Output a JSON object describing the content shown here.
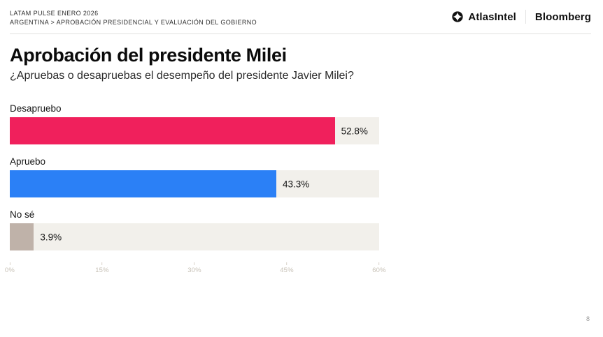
{
  "header": {
    "kicker_line1": "LATAM PULSE ENERO 2026",
    "kicker_line2": "ARGENTINA > APROBACIÓN PRESIDENCIAL Y EVALUACIÓN DEL GOBIERNO",
    "brands": {
      "atlas_label": "AtlasIntel",
      "atlas_icon": "atlas-star-circle-icon",
      "bloomberg_label": "Bloomberg"
    }
  },
  "main": {
    "title": "Aprobación del presidente Milei",
    "subtitle": "¿Apruebas o desapruebas el desempeño del presidente Javier Milei?"
  },
  "footer": {
    "page_number": "8"
  },
  "chart_data": {
    "type": "bar",
    "orientation": "horizontal",
    "title": "Aprobación del presidente Milei",
    "subtitle": "¿Apruebas o desapruebas el desempeño del presidente Javier Milei?",
    "categories": [
      "Desapruebo",
      "Apruebo",
      "No sé"
    ],
    "values": [
      52.8,
      43.3,
      3.9
    ],
    "value_labels": [
      "52.8%",
      "43.3%",
      "3.9%"
    ],
    "bar_colors": [
      "#F0205C",
      "#2B80F6",
      "#BFB2A9"
    ],
    "track_color": "#F2F0EB",
    "xlim": [
      0,
      60
    ],
    "x_ticks": [
      "0%",
      "15%",
      "30%",
      "45%",
      "60%"
    ],
    "x_tick_values": [
      0,
      15,
      30,
      45,
      60
    ],
    "grid": false,
    "legend": false
  }
}
